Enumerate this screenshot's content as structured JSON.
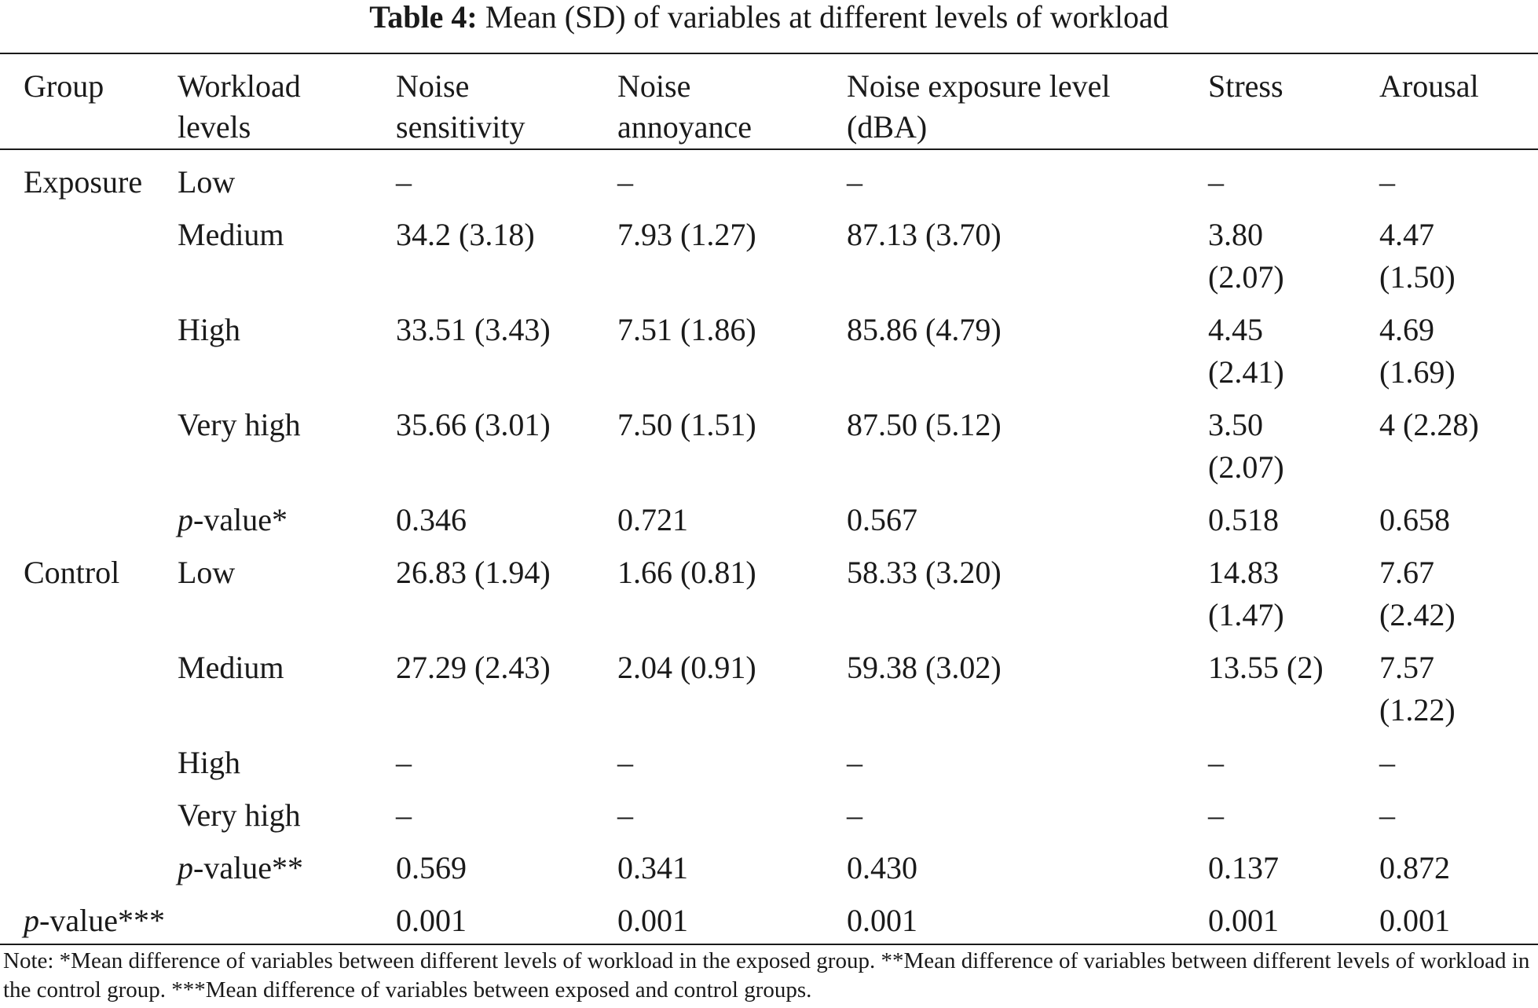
{
  "caption": {
    "label": "Table 4:",
    "title": "Mean (SD) of variables at different levels of workload"
  },
  "headers": {
    "group": "Group",
    "workload_1": "Workload",
    "workload_2": "levels",
    "sens_1": "Noise",
    "sens_2": "sensitivity",
    "ann_1": "Noise",
    "ann_2": "annoyance",
    "expo_1": "Noise exposure level",
    "expo_2": "(dBA)",
    "stress": "Stress",
    "arousal": "Arousal"
  },
  "rows": [
    {
      "group": "Exposure",
      "level": "Low",
      "sens": "–",
      "ann": "–",
      "expo": "–",
      "stress_1": "–",
      "stress_2": "",
      "arousal_1": "–",
      "arousal_2": ""
    },
    {
      "group": "",
      "level": "Medium",
      "sens": "34.2 (3.18)",
      "ann": "7.93 (1.27)",
      "expo": "87.13 (3.70)",
      "stress_1": "3.80",
      "stress_2": "(2.07)",
      "arousal_1": "4.47",
      "arousal_2": "(1.50)"
    },
    {
      "group": "",
      "level": "High",
      "sens": "33.51 (3.43)",
      "ann": "7.51 (1.86)",
      "expo": "85.86 (4.79)",
      "stress_1": "4.45",
      "stress_2": "(2.41)",
      "arousal_1": "4.69",
      "arousal_2": "(1.69)"
    },
    {
      "group": "",
      "level": "Very high",
      "sens": "35.66 (3.01)",
      "ann": "7.50 (1.51)",
      "expo": "87.50 (5.12)",
      "stress_1": "3.50",
      "stress_2": "(2.07)",
      "arousal_1": "4 (2.28)",
      "arousal_2": ""
    },
    {
      "group": "",
      "level_p": "p",
      "level_rest": "-value*",
      "sens": "0.346",
      "ann": "0.721",
      "expo": "0.567",
      "stress_1": "0.518",
      "stress_2": "",
      "arousal_1": "0.658",
      "arousal_2": ""
    },
    {
      "group": "Control",
      "level": "Low",
      "sens": "26.83 (1.94)",
      "ann": "1.66 (0.81)",
      "expo": "58.33 (3.20)",
      "stress_1": "14.83",
      "stress_2": "(1.47)",
      "arousal_1": "7.67",
      "arousal_2": "(2.42)"
    },
    {
      "group": "",
      "level": "Medium",
      "sens": "27.29 (2.43)",
      "ann": "2.04 (0.91)",
      "expo": "59.38 (3.02)",
      "stress_1": "13.55 (2)",
      "stress_2": "",
      "arousal_1": "7.57",
      "arousal_2": "(1.22)"
    },
    {
      "group": "",
      "level": "High",
      "sens": "–",
      "ann": "–",
      "expo": "–",
      "stress_1": "–",
      "stress_2": "",
      "arousal_1": "–",
      "arousal_2": ""
    },
    {
      "group": "",
      "level": "Very high",
      "sens": "–",
      "ann": "–",
      "expo": "–",
      "stress_1": "–",
      "stress_2": "",
      "arousal_1": "–",
      "arousal_2": ""
    },
    {
      "group": "",
      "level_p": "p",
      "level_rest": "-value**",
      "sens": "0.569",
      "ann": "0.341",
      "expo": "0.430",
      "stress_1": "0.137",
      "stress_2": "",
      "arousal_1": "0.872",
      "arousal_2": ""
    }
  ],
  "final_row": {
    "label_p": "p",
    "label_rest": "-value***",
    "sens": "0.001",
    "ann": "0.001",
    "expo": "0.001",
    "stress": "0.001",
    "arousal": "0.001"
  },
  "note": "Note: *Mean difference of variables between different levels of workload in the exposed group. **Mean difference of variables between different levels of workload in the control group. ***Mean difference of variables between exposed and control groups."
}
